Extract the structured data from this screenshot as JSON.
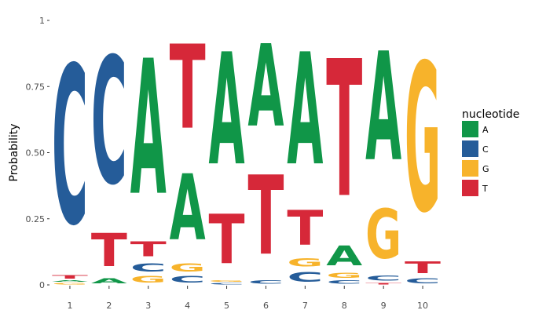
{
  "chart_data": {
    "type": "sequence-logo",
    "title": "",
    "xlabel": "",
    "ylabel": "Probability",
    "ylim": [
      0,
      1
    ],
    "y_ticks": [
      {
        "value": 0,
        "label": "0"
      },
      {
        "value": 0.25,
        "label": "0.25"
      },
      {
        "value": 0.5,
        "label": "0.50"
      },
      {
        "value": 0.75,
        "label": "0.75"
      },
      {
        "value": 1,
        "label": "1"
      }
    ],
    "positions": [
      "1",
      "2",
      "3",
      "4",
      "5",
      "6",
      "7",
      "8",
      "9",
      "10"
    ],
    "legend": {
      "title": "nucleotide",
      "placement": "right",
      "entries": [
        {
          "letter": "A",
          "color": "#109648"
        },
        {
          "letter": "C",
          "color": "#255C99"
        },
        {
          "letter": "G",
          "color": "#F7B32B"
        },
        {
          "letter": "T",
          "color": "#D62839"
        }
      ]
    },
    "columns": [
      {
        "position": "1",
        "stack": [
          {
            "letter": "G",
            "p": 0.01
          },
          {
            "letter": "A",
            "p": 0.01
          },
          {
            "letter": "T",
            "p": 0.02
          },
          {
            "letter": "C",
            "p": 0.96
          }
        ]
      },
      {
        "position": "2",
        "stack": [
          {
            "letter": "A",
            "p": 0.03
          },
          {
            "letter": "T",
            "p": 0.2
          },
          {
            "letter": "C",
            "p": 0.77
          }
        ]
      },
      {
        "position": "3",
        "stack": [
          {
            "letter": "G",
            "p": 0.04
          },
          {
            "letter": "C",
            "p": 0.05
          },
          {
            "letter": "T",
            "p": 0.09
          },
          {
            "letter": "A",
            "p": 0.82
          }
        ]
      },
      {
        "position": "4",
        "stack": [
          {
            "letter": "C",
            "p": 0.04
          },
          {
            "letter": "G",
            "p": 0.05
          },
          {
            "letter": "A",
            "p": 0.4
          },
          {
            "letter": "T",
            "p": 0.51
          }
        ]
      },
      {
        "position": "5",
        "stack": [
          {
            "letter": "C",
            "p": 0.01
          },
          {
            "letter": "G",
            "p": 0.01
          },
          {
            "letter": "T",
            "p": 0.3
          },
          {
            "letter": "A",
            "p": 0.68
          }
        ]
      },
      {
        "position": "6",
        "stack": [
          {
            "letter": "C",
            "p": 0.02
          },
          {
            "letter": "T",
            "p": 0.48
          },
          {
            "letter": "A",
            "p": 0.5
          }
        ]
      },
      {
        "position": "7",
        "stack": [
          {
            "letter": "C",
            "p": 0.06
          },
          {
            "letter": "G",
            "p": 0.05
          },
          {
            "letter": "T",
            "p": 0.21
          },
          {
            "letter": "A",
            "p": 0.68
          }
        ]
      },
      {
        "position": "8",
        "stack": [
          {
            "letter": "C",
            "p": 0.02
          },
          {
            "letter": "G",
            "p": 0.03
          },
          {
            "letter": "A",
            "p": 0.12
          },
          {
            "letter": "T",
            "p": 0.83
          }
        ]
      },
      {
        "position": "9",
        "stack": [
          {
            "letter": "T",
            "p": 0.01
          },
          {
            "letter": "C",
            "p": 0.03
          },
          {
            "letter": "G",
            "p": 0.3
          },
          {
            "letter": "A",
            "p": 0.66
          }
        ]
      },
      {
        "position": "10",
        "stack": [
          {
            "letter": "C",
            "p": 0.03
          },
          {
            "letter": "T",
            "p": 0.07
          },
          {
            "letter": "G",
            "p": 0.9
          }
        ]
      }
    ]
  }
}
